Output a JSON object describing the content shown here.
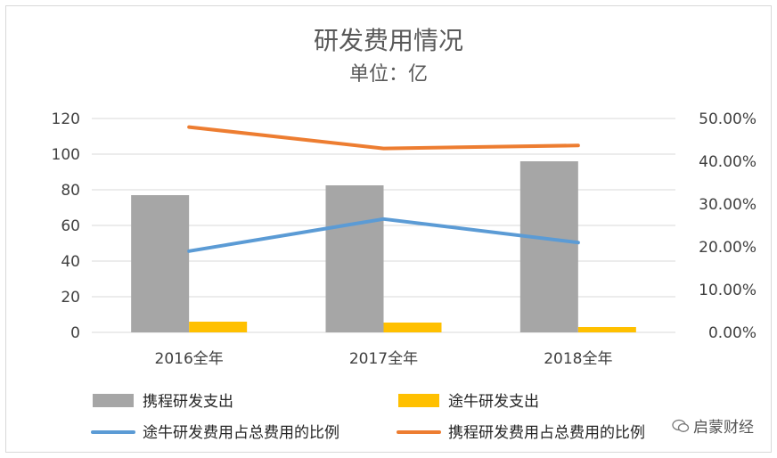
{
  "chart_data": {
    "type": "bar",
    "title": "研发费用情况",
    "subtitle": "单位：亿",
    "categories": [
      "2016全年",
      "2017全年",
      "2018全年"
    ],
    "ylim": [
      0,
      120
    ],
    "yticks": [
      0,
      20,
      40,
      60,
      80,
      100,
      120
    ],
    "y2lim": [
      0,
      0.5
    ],
    "y2ticks": [
      "0.00%",
      "10.00%",
      "20.00%",
      "30.00%",
      "40.00%",
      "50.00%"
    ],
    "series": [
      {
        "name": "携程研发支出",
        "kind": "bar",
        "axis": "left",
        "color": "#a6a6a6",
        "values": [
          77,
          82.5,
          96
        ]
      },
      {
        "name": "途牛研发支出",
        "kind": "bar",
        "axis": "left",
        "color": "#ffc000",
        "values": [
          6,
          5.5,
          3
        ]
      },
      {
        "name": "途牛研发费用占总费用的比例",
        "kind": "line",
        "axis": "right",
        "color": "#5b9bd5",
        "values": [
          0.19,
          0.265,
          0.21
        ]
      },
      {
        "name": "携程研发费用占总费用的比例",
        "kind": "line",
        "axis": "right",
        "color": "#ed7d31",
        "values": [
          0.48,
          0.43,
          0.437
        ]
      }
    ]
  },
  "watermark": {
    "text": "启蒙财经",
    "icon": "wechat-icon"
  }
}
